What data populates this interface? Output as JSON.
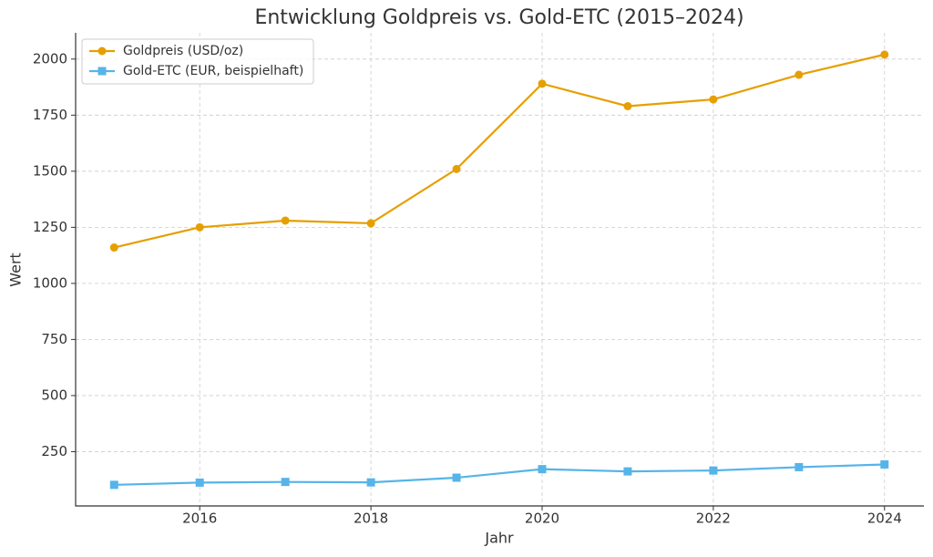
{
  "chart_data": {
    "type": "line",
    "title": "Entwicklung Goldpreis vs. Gold-ETC (2015–2024)",
    "x_label": "Jahr",
    "y_label": "Wert",
    "x": [
      2015,
      2016,
      2017,
      2018,
      2019,
      2020,
      2021,
      2022,
      2023,
      2024
    ],
    "series": [
      {
        "name": "Goldpreis (USD/oz)",
        "color": "#e69f00",
        "marker": "circle",
        "values": [
          1160,
          1250,
          1280,
          1268,
          1510,
          1890,
          1790,
          1820,
          1930,
          2020
        ]
      },
      {
        "name": "Gold-ETC (EUR, beispielhaft)",
        "color": "#56b4e9",
        "marker": "square",
        "values": [
          102,
          112,
          115,
          113,
          134,
          172,
          162,
          166,
          181,
          193
        ]
      }
    ],
    "xlim": [
      2014.55,
      2024.46
    ],
    "xticks": [
      2016,
      2018,
      2020,
      2022,
      2024
    ],
    "ylim": [
      8,
      2117
    ],
    "yticks": [
      250,
      500,
      750,
      1000,
      1250,
      1500,
      1750,
      2000
    ],
    "grid": true,
    "legend": "upper left"
  }
}
